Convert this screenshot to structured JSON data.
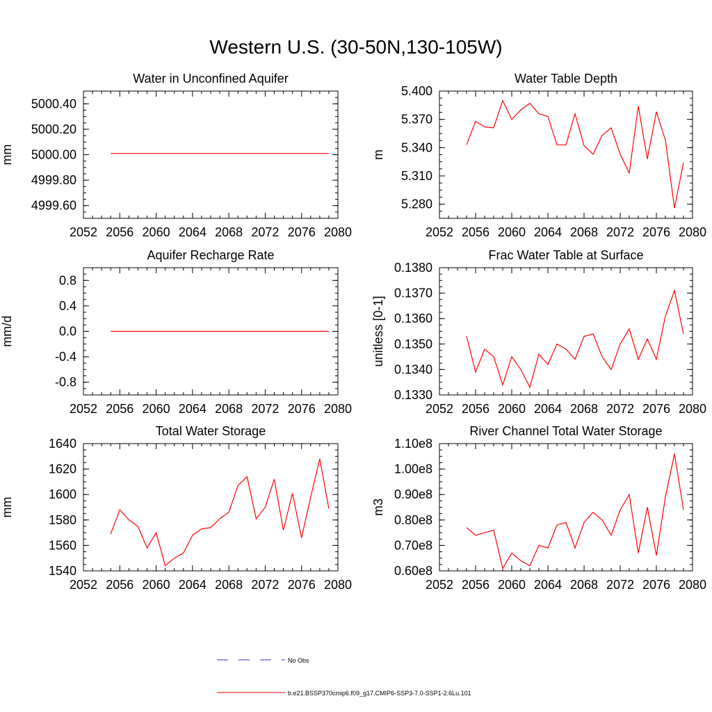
{
  "title": "Western U.S. (30-50N,130-105W)",
  "colors": {
    "series": "#ff0000",
    "obs": "#3333cc",
    "axis": "#000000"
  },
  "legend": {
    "entries": [
      {
        "label": "No Obs",
        "style": "dashed",
        "color": "#3333cc"
      },
      {
        "label": "b.e21.BSSP370cmip6.f09_g17.CMIP6-SSP3-7.0-SSP1-2.6Lu.101",
        "style": "solid",
        "color": "#ff0000"
      }
    ]
  },
  "chart_data": [
    {
      "type": "line",
      "title": "Water in Unconfined Aquifer",
      "ylabel": "mm",
      "xlim": [
        2052,
        2080
      ],
      "ylim": [
        4999.5,
        5000.5
      ],
      "xticks": [
        "2052",
        "2056",
        "2060",
        "2064",
        "2068",
        "2072",
        "2076",
        "2080"
      ],
      "yticks": [
        {
          "value": 4999.6,
          "label": "4999.60"
        },
        {
          "value": 4999.8,
          "label": "4999.80"
        },
        {
          "value": 5000.0,
          "label": "5000.00"
        },
        {
          "value": 5000.2,
          "label": "5000.20"
        },
        {
          "value": 5000.4,
          "label": "5000.40"
        }
      ],
      "x": [
        2055,
        2056,
        2057,
        2058,
        2059,
        2060,
        2061,
        2062,
        2063,
        2064,
        2065,
        2066,
        2067,
        2068,
        2069,
        2070,
        2071,
        2072,
        2073,
        2074,
        2075,
        2076,
        2077,
        2078,
        2079
      ],
      "series": [
        {
          "values": [
            5000.01,
            5000.01,
            5000.01,
            5000.01,
            5000.01,
            5000.01,
            5000.01,
            5000.01,
            5000.01,
            5000.01,
            5000.01,
            5000.01,
            5000.01,
            5000.01,
            5000.01,
            5000.01,
            5000.01,
            5000.01,
            5000.01,
            5000.01,
            5000.01,
            5000.01,
            5000.01,
            5000.01,
            5000.01
          ]
        }
      ]
    },
    {
      "type": "line",
      "title": "Water Table Depth",
      "ylabel": "m",
      "xlim": [
        2052,
        2080
      ],
      "ylim": [
        5.265,
        5.4
      ],
      "xticks": [
        "2052",
        "2056",
        "2060",
        "2064",
        "2068",
        "2072",
        "2076",
        "2080"
      ],
      "yticks": [
        {
          "value": 5.28,
          "label": "5.280"
        },
        {
          "value": 5.31,
          "label": "5.310"
        },
        {
          "value": 5.34,
          "label": "5.340"
        },
        {
          "value": 5.37,
          "label": "5.370"
        },
        {
          "value": 5.4,
          "label": "5.400"
        }
      ],
      "x": [
        2055,
        2056,
        2057,
        2058,
        2059,
        2060,
        2061,
        2062,
        2063,
        2064,
        2065,
        2066,
        2067,
        2068,
        2069,
        2070,
        2071,
        2072,
        2073,
        2074,
        2075,
        2076,
        2077,
        2078,
        2079
      ],
      "series": [
        {
          "values": [
            5.343,
            5.368,
            5.362,
            5.361,
            5.39,
            5.37,
            5.38,
            5.387,
            5.376,
            5.373,
            5.343,
            5.343,
            5.376,
            5.342,
            5.333,
            5.353,
            5.361,
            5.333,
            5.313,
            5.384,
            5.328,
            5.378,
            5.348,
            5.276,
            5.324
          ]
        }
      ]
    },
    {
      "type": "line",
      "title": "Aquifer Recharge Rate",
      "ylabel": "mm/d",
      "xlim": [
        2052,
        2080
      ],
      "ylim": [
        -1.0,
        1.0
      ],
      "xticks": [
        "2052",
        "2056",
        "2060",
        "2064",
        "2068",
        "2072",
        "2076",
        "2080"
      ],
      "yticks": [
        {
          "value": -0.8,
          "label": "-0.8"
        },
        {
          "value": -0.4,
          "label": "-0.4"
        },
        {
          "value": 0.0,
          "label": "0.0"
        },
        {
          "value": 0.4,
          "label": "0.4"
        },
        {
          "value": 0.8,
          "label": "0.8"
        }
      ],
      "x": [
        2055,
        2056,
        2057,
        2058,
        2059,
        2060,
        2061,
        2062,
        2063,
        2064,
        2065,
        2066,
        2067,
        2068,
        2069,
        2070,
        2071,
        2072,
        2073,
        2074,
        2075,
        2076,
        2077,
        2078,
        2079
      ],
      "series": [
        {
          "values": [
            0,
            0,
            0,
            0,
            0,
            0,
            0,
            0,
            0,
            0,
            0,
            0,
            0,
            0,
            0,
            0,
            0,
            0,
            0,
            0,
            0,
            0,
            0,
            0,
            0
          ]
        }
      ]
    },
    {
      "type": "line",
      "title": "Frac Water Table at Surface",
      "ylabel": "unitless [0-1]",
      "xlim": [
        2052,
        2080
      ],
      "ylim": [
        0.133,
        0.138
      ],
      "xticks": [
        "2052",
        "2056",
        "2060",
        "2064",
        "2068",
        "2072",
        "2076",
        "2080"
      ],
      "yticks": [
        {
          "value": 0.133,
          "label": "0.1330"
        },
        {
          "value": 0.134,
          "label": "0.1340"
        },
        {
          "value": 0.135,
          "label": "0.1350"
        },
        {
          "value": 0.136,
          "label": "0.1360"
        },
        {
          "value": 0.137,
          "label": "0.1370"
        },
        {
          "value": 0.138,
          "label": "0.1380"
        }
      ],
      "x": [
        2055,
        2056,
        2057,
        2058,
        2059,
        2060,
        2061,
        2062,
        2063,
        2064,
        2065,
        2066,
        2067,
        2068,
        2069,
        2070,
        2071,
        2072,
        2073,
        2074,
        2075,
        2076,
        2077,
        2078,
        2079
      ],
      "series": [
        {
          "values": [
            0.1353,
            0.1339,
            0.1348,
            0.1345,
            0.1334,
            0.1345,
            0.134,
            0.1333,
            0.1346,
            0.1342,
            0.135,
            0.1348,
            0.1344,
            0.1353,
            0.1354,
            0.1345,
            0.134,
            0.135,
            0.1356,
            0.1344,
            0.1352,
            0.1344,
            0.1361,
            0.1371,
            0.1354
          ]
        }
      ]
    },
    {
      "type": "line",
      "title": "Total Water Storage",
      "ylabel": "mm",
      "xlim": [
        2052,
        2080
      ],
      "ylim": [
        1540,
        1640
      ],
      "xticks": [
        "2052",
        "2056",
        "2060",
        "2064",
        "2068",
        "2072",
        "2076",
        "2080"
      ],
      "yticks": [
        {
          "value": 1540,
          "label": "1540"
        },
        {
          "value": 1560,
          "label": "1560"
        },
        {
          "value": 1580,
          "label": "1580"
        },
        {
          "value": 1600,
          "label": "1600"
        },
        {
          "value": 1620,
          "label": "1620"
        },
        {
          "value": 1640,
          "label": "1640"
        }
      ],
      "x": [
        2055,
        2056,
        2057,
        2058,
        2059,
        2060,
        2061,
        2062,
        2063,
        2064,
        2065,
        2066,
        2067,
        2068,
        2069,
        2070,
        2071,
        2072,
        2073,
        2074,
        2075,
        2076,
        2077,
        2078,
        2079
      ],
      "series": [
        {
          "values": [
            1569,
            1588,
            1580,
            1575,
            1558,
            1570,
            1544,
            1550,
            1554,
            1568,
            1573,
            1574,
            1581,
            1586,
            1607,
            1614,
            1581,
            1590,
            1612,
            1572,
            1601,
            1566,
            1598,
            1628,
            1589
          ]
        }
      ]
    },
    {
      "type": "line",
      "title": "River Channel Total Water Storage",
      "ylabel": "m3",
      "xlim": [
        2052,
        2080
      ],
      "ylim": [
        0.6,
        1.1
      ],
      "yunit": "1e8",
      "xticks": [
        "2052",
        "2056",
        "2060",
        "2064",
        "2068",
        "2072",
        "2076",
        "2080"
      ],
      "yticks": [
        {
          "value": 0.6,
          "label": "0.60e8"
        },
        {
          "value": 0.7,
          "label": "0.70e8"
        },
        {
          "value": 0.8,
          "label": "0.80e8"
        },
        {
          "value": 0.9,
          "label": "0.90e8"
        },
        {
          "value": 1.0,
          "label": "1.00e8"
        },
        {
          "value": 1.1,
          "label": "1.10e8"
        }
      ],
      "x": [
        2055,
        2056,
        2057,
        2058,
        2059,
        2060,
        2061,
        2062,
        2063,
        2064,
        2065,
        2066,
        2067,
        2068,
        2069,
        2070,
        2071,
        2072,
        2073,
        2074,
        2075,
        2076,
        2077,
        2078,
        2079
      ],
      "series": [
        {
          "values": [
            0.77,
            0.74,
            0.75,
            0.76,
            0.61,
            0.67,
            0.64,
            0.62,
            0.7,
            0.69,
            0.78,
            0.79,
            0.69,
            0.79,
            0.83,
            0.8,
            0.74,
            0.84,
            0.9,
            0.67,
            0.85,
            0.66,
            0.89,
            1.06,
            0.84
          ]
        }
      ]
    }
  ]
}
